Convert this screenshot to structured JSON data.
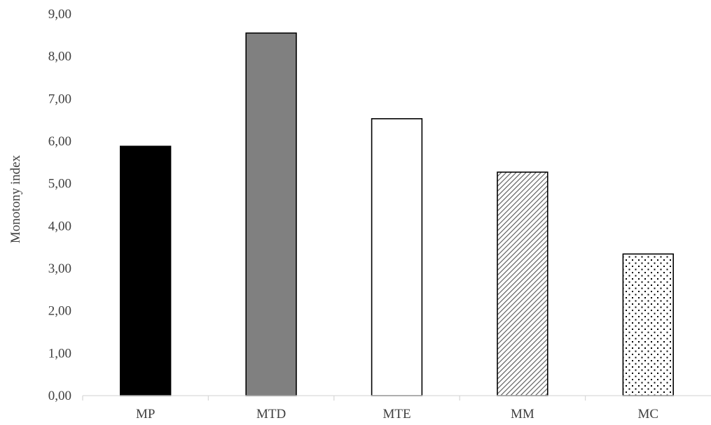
{
  "chart_data": {
    "type": "bar",
    "title": "",
    "xlabel": "",
    "ylabel": "Monotony index",
    "categories": [
      "MP",
      "MTD",
      "MTE",
      "MM",
      "MC"
    ],
    "values": [
      5.88,
      8.55,
      6.53,
      5.27,
      3.34
    ],
    "ylim": [
      0,
      9
    ],
    "yticks": [
      "0,00",
      "1,00",
      "2,00",
      "3,00",
      "4,00",
      "5,00",
      "6,00",
      "7,00",
      "8,00",
      "9,00"
    ],
    "grid": false,
    "legend": "none",
    "bar_fills": [
      "solid-black",
      "solid-gray",
      "solid-white",
      "diagonal-hatch",
      "dotted"
    ],
    "colors": {
      "black": "#000000",
      "gray": "#808080",
      "white": "#ffffff",
      "axis": "#d9d9d9",
      "text": "#404040"
    }
  }
}
